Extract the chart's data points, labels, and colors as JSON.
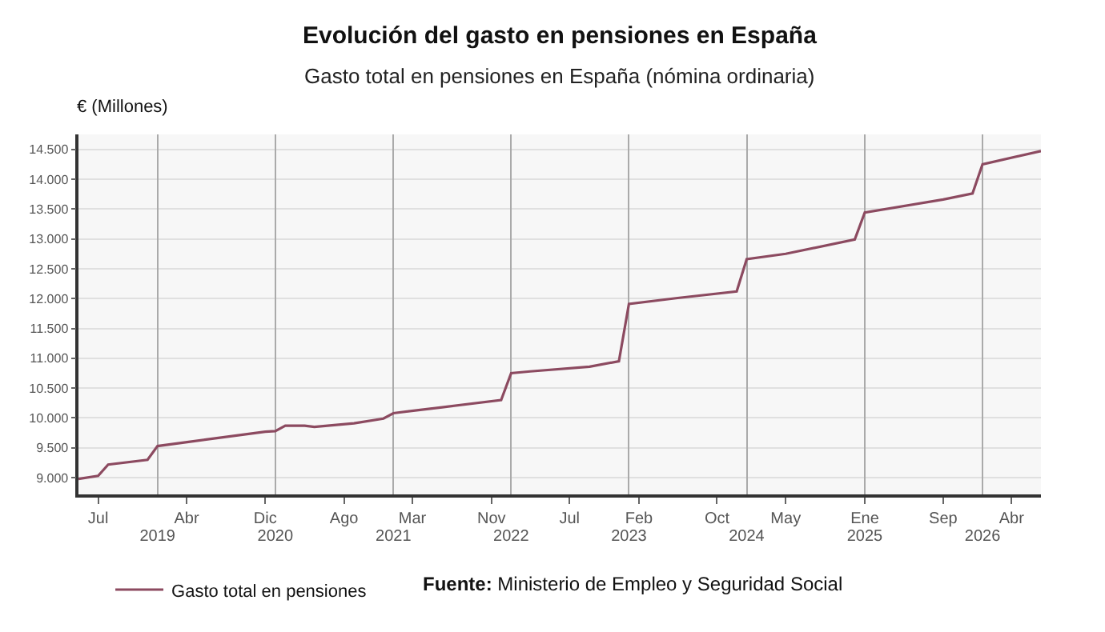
{
  "chart_data": {
    "type": "line",
    "title": "Evolución del gasto en pensiones en España",
    "subtitle": "Gasto total en pensiones en España (nómina ordinaria)",
    "ylabel": "€ (Millones)",
    "x": [
      "2018-05",
      "2018-07",
      "2018-08",
      "2018-12",
      "2019-01",
      "2019-06",
      "2019-12",
      "2020-01",
      "2020-02",
      "2020-04",
      "2020-05",
      "2020-09",
      "2020-12",
      "2021-01",
      "2021-06",
      "2021-12",
      "2022-01",
      "2022-03",
      "2022-09",
      "2022-12",
      "2023-01",
      "2023-06",
      "2023-12",
      "2024-01",
      "2024-05",
      "2024-12",
      "2025-01",
      "2025-09",
      "2025-12",
      "2026-01",
      "2026-07"
    ],
    "series": [
      {
        "name": "Gasto total en pensiones",
        "color": "#8c4a60",
        "values": [
          8980,
          9030,
          9220,
          9300,
          9530,
          9640,
          9770,
          9780,
          9870,
          9870,
          9850,
          9910,
          9990,
          10080,
          10180,
          10300,
          10750,
          10780,
          10860,
          10950,
          11910,
          12010,
          12120,
          12660,
          12750,
          12990,
          13440,
          13660,
          13760,
          14250,
          14470
        ]
      }
    ],
    "xlim": [
      "2018-05",
      "2026-07"
    ],
    "xticks": [
      {
        "value": "2018-07",
        "label": "Jul"
      },
      {
        "value": "2019-04",
        "label": "Abr"
      },
      {
        "value": "2019-12",
        "label": "Dic"
      },
      {
        "value": "2020-08",
        "label": "Ago"
      },
      {
        "value": "2021-03",
        "label": "Mar"
      },
      {
        "value": "2021-11",
        "label": "Nov"
      },
      {
        "value": "2022-07",
        "label": "Jul"
      },
      {
        "value": "2023-02",
        "label": "Feb"
      },
      {
        "value": "2023-10",
        "label": "Oct"
      },
      {
        "value": "2024-05",
        "label": "May"
      },
      {
        "value": "2025-01",
        "label": "Ene"
      },
      {
        "value": "2025-09",
        "label": "Sep"
      },
      {
        "value": "2026-04",
        "label": "Abr"
      }
    ],
    "x2lim": [
      "2018-05",
      "2026-07"
    ],
    "x2ticks": [
      {
        "value": "2019-01",
        "label": "2019"
      },
      {
        "value": "2020-01",
        "label": "2020"
      },
      {
        "value": "2021-01",
        "label": "2021"
      },
      {
        "value": "2022-01",
        "label": "2022"
      },
      {
        "value": "2023-01",
        "label": "2023"
      },
      {
        "value": "2024-01",
        "label": "2024"
      },
      {
        "value": "2025-01",
        "label": "2025"
      },
      {
        "value": "2026-01",
        "label": "2026"
      }
    ],
    "ylim": [
      8720,
      14750
    ],
    "yticks": [
      {
        "value": 9000,
        "label": "9.000"
      },
      {
        "value": 9500,
        "label": "9.500"
      },
      {
        "value": 10000,
        "label": "10.000"
      },
      {
        "value": 10500,
        "label": "10.500"
      },
      {
        "value": 11000,
        "label": "11.000"
      },
      {
        "value": 11500,
        "label": "11.500"
      },
      {
        "value": 12000,
        "label": "12.000"
      },
      {
        "value": 12500,
        "label": "12.500"
      },
      {
        "value": 13000,
        "label": "13.000"
      },
      {
        "value": 13500,
        "label": "13.500"
      },
      {
        "value": 14000,
        "label": "14.000"
      },
      {
        "value": 14500,
        "label": "14.500"
      }
    ],
    "grid": true,
    "legend": "bottom left",
    "marker": "none",
    "line_style": "solid",
    "annotations": [
      "Fuente: Ministerio de Empleo y Seguridad Social"
    ]
  }
}
